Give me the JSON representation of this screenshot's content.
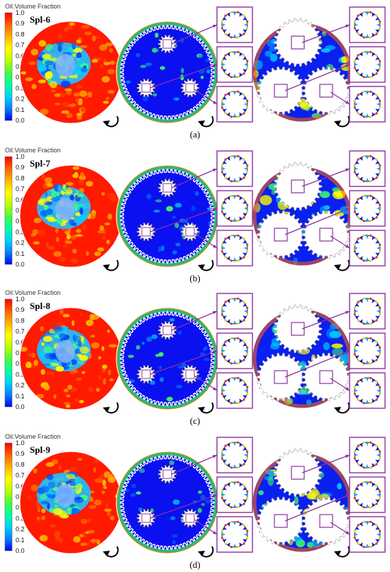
{
  "colorbar": {
    "title": "Oil.Volume Fraction",
    "ticks": [
      "1.0",
      "0.9",
      "0.8",
      "0.7",
      "0.6",
      "0.5",
      "0.4",
      "0.3",
      "0.2",
      "0.1",
      "0.0"
    ],
    "colors": [
      "#0000ff",
      "#0080ff",
      "#00d0ff",
      "#00ffa0",
      "#40ff40",
      "#c0ff00",
      "#ffff00",
      "#ffb000",
      "#ff6000",
      "#ff0000"
    ]
  },
  "panels": [
    {
      "sample": "Spl-6",
      "label": "(a)"
    },
    {
      "sample": "Spl-7",
      "label": "(b)"
    },
    {
      "sample": "Spl-8",
      "label": "(c)"
    },
    {
      "sample": "Spl-9",
      "label": "(d)"
    }
  ],
  "accent_color": "#8b2fa0"
}
